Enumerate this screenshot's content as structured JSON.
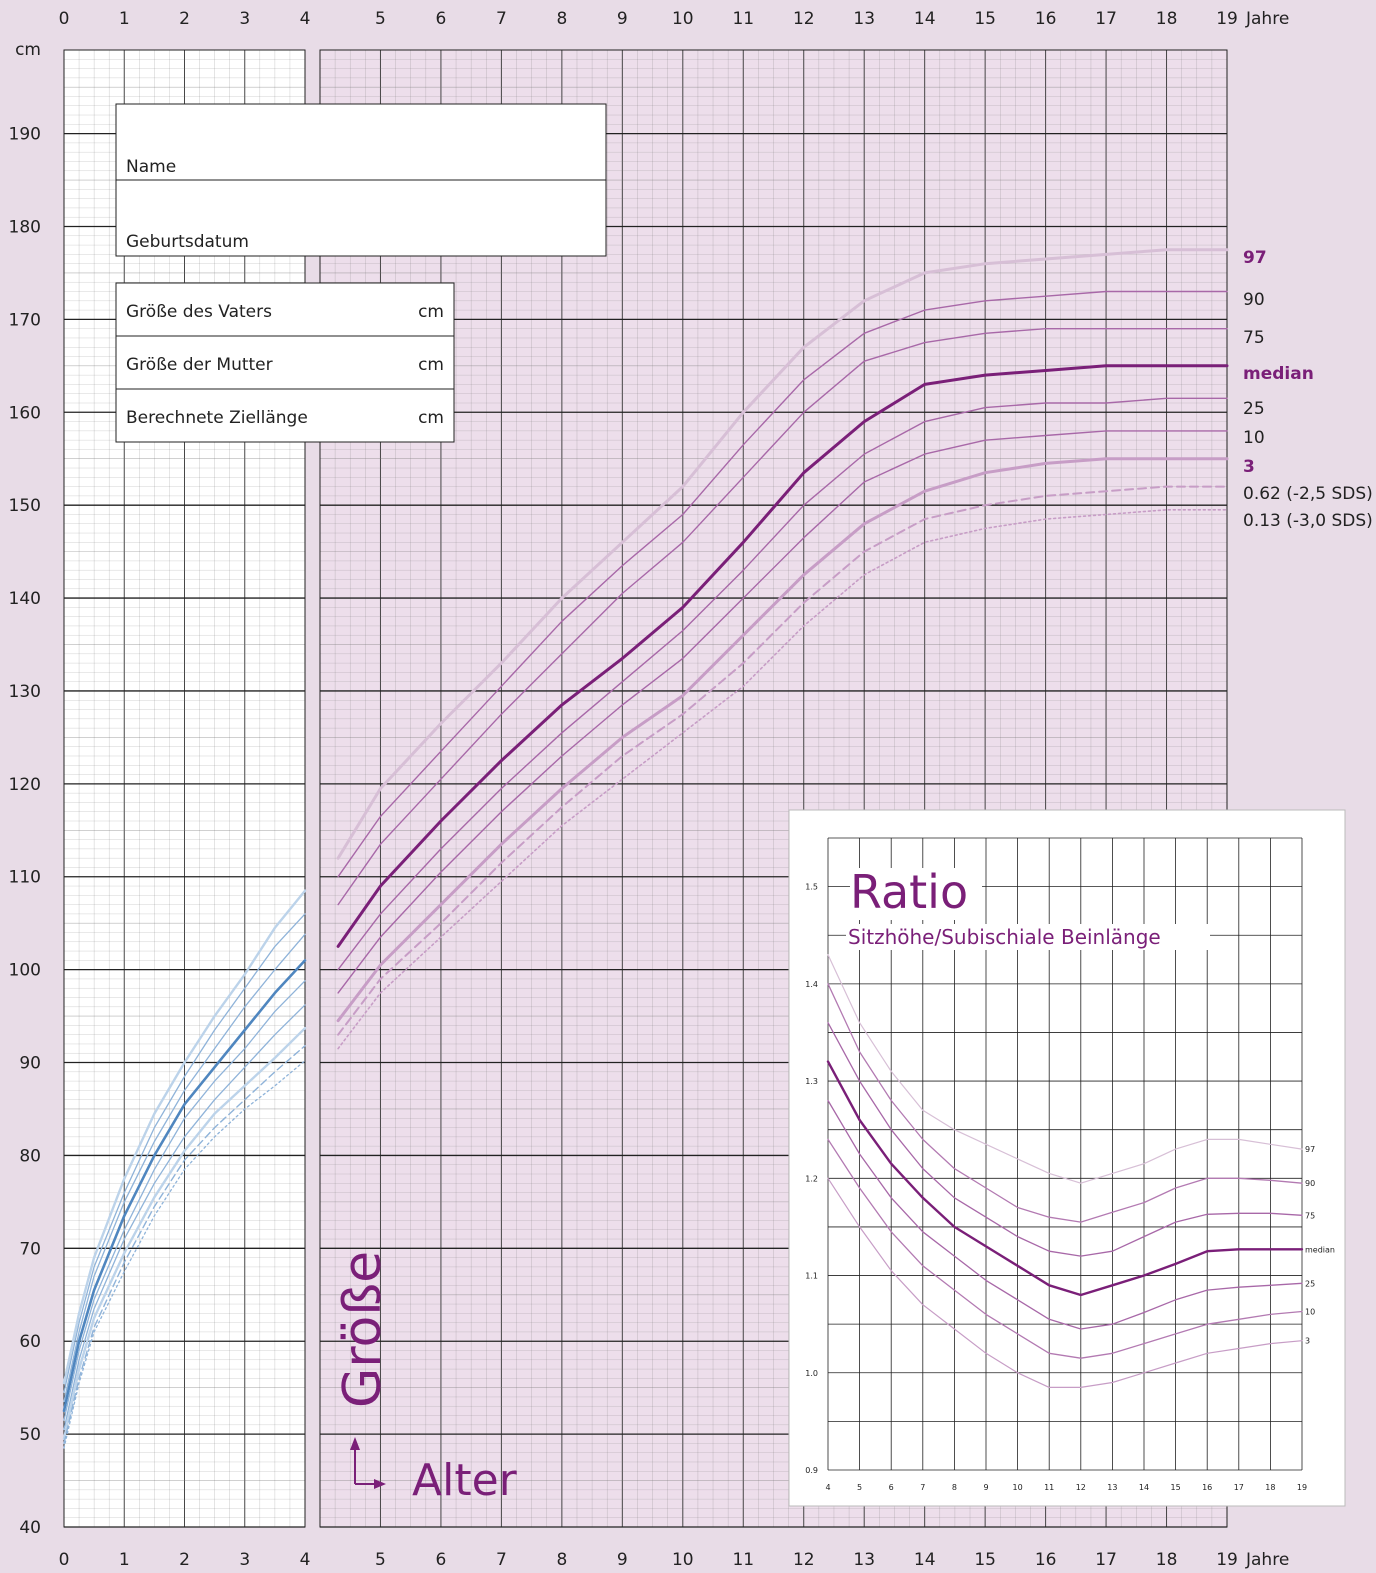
{
  "colors": {
    "page_bg": "#e8dce7",
    "infant_bg": "#ffffff",
    "child_bg": "#eddeeb",
    "grid": "#1a1a1a",
    "blue_light": "#bcd3ea",
    "blue_mid": "#8fb3d9",
    "blue_dark": "#4f86bf",
    "purple_light": "#d7bfd6",
    "purple_mid": "#a868a8",
    "purple_dark": "#7a1f78",
    "purple_pale": "#c79dc6"
  },
  "main_chart": {
    "type": "line",
    "x_unit_label": "Jahre",
    "y_unit_label": "cm",
    "x_ticks": [
      "0",
      "1",
      "2",
      "3",
      "4",
      "5",
      "6",
      "7",
      "8",
      "9",
      "10",
      "11",
      "12",
      "13",
      "14",
      "15",
      "16",
      "17",
      "18",
      "19"
    ],
    "y_ticks": [
      "40",
      "50",
      "60",
      "70",
      "80",
      "90",
      "100",
      "110",
      "120",
      "130",
      "140",
      "150",
      "160",
      "170",
      "180",
      "190"
    ],
    "xlim": [
      0,
      19
    ],
    "ylim": [
      40,
      199
    ],
    "y_axis_title": "Größe",
    "x_axis_title": "Alter",
    "percentile_labels": [
      "97",
      "90",
      "75",
      "median",
      "25",
      "10",
      "3",
      "0.62 (-2,5 SDS)",
      "0.13 (-3,0 SDS)"
    ]
  },
  "form": {
    "name_label": "Name",
    "birthdate_label": "Geburtsdatum",
    "father_label": "Größe des Vaters",
    "mother_label": "Größe der Mutter",
    "target_label": "Berechnete Ziellänge",
    "unit": "cm"
  },
  "chart_data": [
    {
      "type": "line",
      "title": "",
      "xlabel": "Jahre",
      "ylabel": "cm",
      "xlim": [
        0,
        4
      ],
      "ylim": [
        40,
        199
      ],
      "series": [
        {
          "name": "97",
          "x": [
            0,
            0.25,
            0.5,
            1,
            1.5,
            2,
            2.5,
            3,
            3.5,
            4
          ],
          "y": [
            55.5,
            63,
            69,
            77.5,
            84.5,
            90,
            95,
            99.5,
            104.5,
            108.5
          ]
        },
        {
          "name": "90",
          "x": [
            0,
            0.25,
            0.5,
            1,
            1.5,
            2,
            2.5,
            3,
            3.5,
            4
          ],
          "y": [
            54.5,
            62,
            68,
            76,
            83,
            88.5,
            93.5,
            98,
            102.5,
            106
          ]
        },
        {
          "name": "75",
          "x": [
            0,
            0.25,
            0.5,
            1,
            1.5,
            2,
            2.5,
            3,
            3.5,
            4
          ],
          "y": [
            53.5,
            61,
            67,
            75,
            81.5,
            87,
            91.5,
            96,
            100,
            103.8
          ]
        },
        {
          "name": "median",
          "x": [
            0,
            0.25,
            0.5,
            1,
            1.5,
            2,
            2.5,
            3,
            3.5,
            4
          ],
          "y": [
            52.5,
            60,
            65.5,
            73.5,
            80,
            85.5,
            89.5,
            93.5,
            97.5,
            101
          ]
        },
        {
          "name": "25",
          "x": [
            0,
            0.25,
            0.5,
            1,
            1.5,
            2,
            2.5,
            3,
            3.5,
            4
          ],
          "y": [
            51.5,
            59,
            64.5,
            72,
            78.5,
            84,
            88,
            91.5,
            95.5,
            98.8
          ]
        },
        {
          "name": "10",
          "x": [
            0,
            0.25,
            0.5,
            1,
            1.5,
            2,
            2.5,
            3,
            3.5,
            4
          ],
          "y": [
            50.5,
            58,
            63.5,
            71,
            77,
            82,
            86,
            89.5,
            93,
            96.2
          ]
        },
        {
          "name": "3",
          "x": [
            0,
            0.25,
            0.5,
            1,
            1.5,
            2,
            2.5,
            3,
            3.5,
            4
          ],
          "y": [
            49.5,
            57,
            62.5,
            69.5,
            75.5,
            80.5,
            84.5,
            87.5,
            90.5,
            93.7
          ]
        },
        {
          "name": "0.62 (-2,5 SDS)",
          "x": [
            0,
            0.25,
            0.5,
            1,
            1.5,
            2,
            2.5,
            3,
            3.5,
            4
          ],
          "y": [
            49,
            56,
            61.5,
            68.5,
            74.5,
            79.5,
            83,
            86,
            89,
            91.8
          ]
        },
        {
          "name": "0.13 (-3,0 SDS)",
          "x": [
            0,
            0.25,
            0.5,
            1,
            1.5,
            2,
            2.5,
            3,
            3.5,
            4
          ],
          "y": [
            48.5,
            55.5,
            61,
            67.5,
            73.5,
            78.5,
            82,
            85,
            87.5,
            90.2
          ]
        }
      ]
    },
    {
      "type": "line",
      "title": "",
      "xlabel": "Jahre",
      "ylabel": "cm",
      "xlim": [
        4,
        19
      ],
      "ylim": [
        40,
        199
      ],
      "series": [
        {
          "name": "97",
          "x": [
            4.3,
            5,
            6,
            7,
            8,
            9,
            10,
            11,
            12,
            13,
            14,
            15,
            16,
            17,
            18,
            19
          ],
          "y": [
            112,
            119.5,
            126.5,
            133,
            140,
            146,
            152,
            160,
            167,
            172,
            175,
            176,
            176.5,
            177,
            177.5,
            177.5
          ]
        },
        {
          "name": "90",
          "x": [
            4.3,
            5,
            6,
            7,
            8,
            9,
            10,
            11,
            12,
            13,
            14,
            15,
            16,
            17,
            18,
            19
          ],
          "y": [
            110,
            116.5,
            123.5,
            130.5,
            137.5,
            143.5,
            149,
            156.5,
            163.5,
            168.5,
            171,
            172,
            172.5,
            173,
            173,
            173
          ]
        },
        {
          "name": "75",
          "x": [
            4.3,
            5,
            6,
            7,
            8,
            9,
            10,
            11,
            12,
            13,
            14,
            15,
            16,
            17,
            18,
            19
          ],
          "y": [
            107,
            113.5,
            120.5,
            127.5,
            134,
            140.5,
            146,
            153,
            160,
            165.5,
            167.5,
            168.5,
            169,
            169,
            169,
            169
          ]
        },
        {
          "name": "median",
          "x": [
            4.3,
            5,
            6,
            7,
            8,
            9,
            10,
            11,
            12,
            13,
            14,
            15,
            16,
            17,
            18,
            19
          ],
          "y": [
            102.5,
            109,
            116,
            122.5,
            128.5,
            133.5,
            139,
            146,
            153.5,
            159,
            163,
            164,
            164.5,
            165,
            165,
            165
          ]
        },
        {
          "name": "25",
          "x": [
            4.3,
            5,
            6,
            7,
            8,
            9,
            10,
            11,
            12,
            13,
            14,
            15,
            16,
            17,
            18,
            19
          ],
          "y": [
            100,
            106,
            113,
            119.5,
            125.5,
            131,
            136.5,
            143,
            150,
            155.5,
            159,
            160.5,
            161,
            161,
            161.5,
            161.5
          ]
        },
        {
          "name": "10",
          "x": [
            4.3,
            5,
            6,
            7,
            8,
            9,
            10,
            11,
            12,
            13,
            14,
            15,
            16,
            17,
            18,
            19
          ],
          "y": [
            97.5,
            103.5,
            110.5,
            117,
            123,
            128.5,
            133.5,
            140,
            146.5,
            152.5,
            155.5,
            157,
            157.5,
            158,
            158,
            158
          ]
        },
        {
          "name": "3",
          "x": [
            4.3,
            5,
            6,
            7,
            8,
            9,
            10,
            11,
            12,
            13,
            14,
            15,
            16,
            17,
            18,
            19
          ],
          "y": [
            94.5,
            100.5,
            107,
            113.5,
            119.5,
            125,
            129.5,
            136,
            142.5,
            148,
            151.5,
            153.5,
            154.5,
            155,
            155,
            155
          ]
        },
        {
          "name": "0.62 (-2,5 SDS)",
          "x": [
            4.3,
            5,
            6,
            7,
            8,
            9,
            10,
            11,
            12,
            13,
            14,
            15,
            16,
            17,
            18,
            19
          ],
          "y": [
            93,
            99,
            105,
            111.5,
            117.5,
            123,
            127.5,
            133,
            139.5,
            145,
            148.5,
            150,
            151,
            151.5,
            152,
            152
          ]
        },
        {
          "name": "0.13 (-3,0 SDS)",
          "x": [
            4.3,
            5,
            6,
            7,
            8,
            9,
            10,
            11,
            12,
            13,
            14,
            15,
            16,
            17,
            18,
            19
          ],
          "y": [
            91.5,
            97.5,
            103.5,
            109.5,
            115.5,
            120.5,
            125.5,
            130.5,
            137,
            142.5,
            146,
            147.5,
            148.5,
            149,
            149.5,
            149.5
          ]
        }
      ]
    },
    {
      "type": "line",
      "title": "Ratio",
      "subtitle": "Sitzhöhe/Subischiale Beinlänge",
      "xlabel": "",
      "ylabel": "",
      "xlim": [
        4,
        19
      ],
      "ylim": [
        0.9,
        1.55
      ],
      "x_ticks": [
        "4",
        "5",
        "6",
        "7",
        "8",
        "9",
        "10",
        "11",
        "12",
        "13",
        "14",
        "15",
        "16",
        "17",
        "18",
        "19"
      ],
      "y_ticks": [
        "0.9",
        "1.0",
        "1.1",
        "1.2",
        "1.3",
        "1.4",
        "1.5"
      ],
      "series": [
        {
          "name": "97",
          "x": [
            4,
            5,
            6,
            7,
            8,
            9,
            10,
            11,
            12,
            13,
            14,
            15,
            16,
            17,
            18,
            19
          ],
          "y": [
            1.43,
            1.36,
            1.31,
            1.27,
            1.25,
            1.235,
            1.22,
            1.205,
            1.195,
            1.205,
            1.215,
            1.23,
            1.24,
            1.24,
            1.235,
            1.23
          ]
        },
        {
          "name": "90",
          "x": [
            4,
            5,
            6,
            7,
            8,
            9,
            10,
            11,
            12,
            13,
            14,
            15,
            16,
            17,
            18,
            19
          ],
          "y": [
            1.4,
            1.33,
            1.28,
            1.24,
            1.21,
            1.19,
            1.17,
            1.16,
            1.155,
            1.165,
            1.175,
            1.19,
            1.2,
            1.2,
            1.198,
            1.195
          ]
        },
        {
          "name": "75",
          "x": [
            4,
            5,
            6,
            7,
            8,
            9,
            10,
            11,
            12,
            13,
            14,
            15,
            16,
            17,
            18,
            19
          ],
          "y": [
            1.36,
            1.3,
            1.25,
            1.21,
            1.18,
            1.16,
            1.14,
            1.125,
            1.12,
            1.125,
            1.14,
            1.155,
            1.163,
            1.164,
            1.164,
            1.162
          ]
        },
        {
          "name": "median",
          "x": [
            4,
            5,
            6,
            7,
            8,
            9,
            10,
            11,
            12,
            13,
            14,
            15,
            16,
            17,
            18,
            19
          ],
          "y": [
            1.32,
            1.26,
            1.215,
            1.18,
            1.15,
            1.13,
            1.11,
            1.09,
            1.08,
            1.09,
            1.1,
            1.112,
            1.125,
            1.127,
            1.127,
            1.127
          ]
        },
        {
          "name": "25",
          "x": [
            4,
            5,
            6,
            7,
            8,
            9,
            10,
            11,
            12,
            13,
            14,
            15,
            16,
            17,
            18,
            19
          ],
          "y": [
            1.28,
            1.225,
            1.18,
            1.145,
            1.12,
            1.095,
            1.075,
            1.055,
            1.045,
            1.05,
            1.062,
            1.075,
            1.085,
            1.088,
            1.09,
            1.092
          ]
        },
        {
          "name": "10",
          "x": [
            4,
            5,
            6,
            7,
            8,
            9,
            10,
            11,
            12,
            13,
            14,
            15,
            16,
            17,
            18,
            19
          ],
          "y": [
            1.24,
            1.19,
            1.145,
            1.11,
            1.085,
            1.06,
            1.04,
            1.02,
            1.015,
            1.02,
            1.03,
            1.04,
            1.05,
            1.055,
            1.06,
            1.063
          ]
        },
        {
          "name": "3",
          "x": [
            4,
            5,
            6,
            7,
            8,
            9,
            10,
            11,
            12,
            13,
            14,
            15,
            16,
            17,
            18,
            19
          ],
          "y": [
            1.2,
            1.15,
            1.105,
            1.07,
            1.045,
            1.02,
            1.0,
            0.985,
            0.985,
            0.99,
            1.0,
            1.01,
            1.02,
            1.025,
            1.03,
            1.033
          ]
        }
      ]
    }
  ]
}
